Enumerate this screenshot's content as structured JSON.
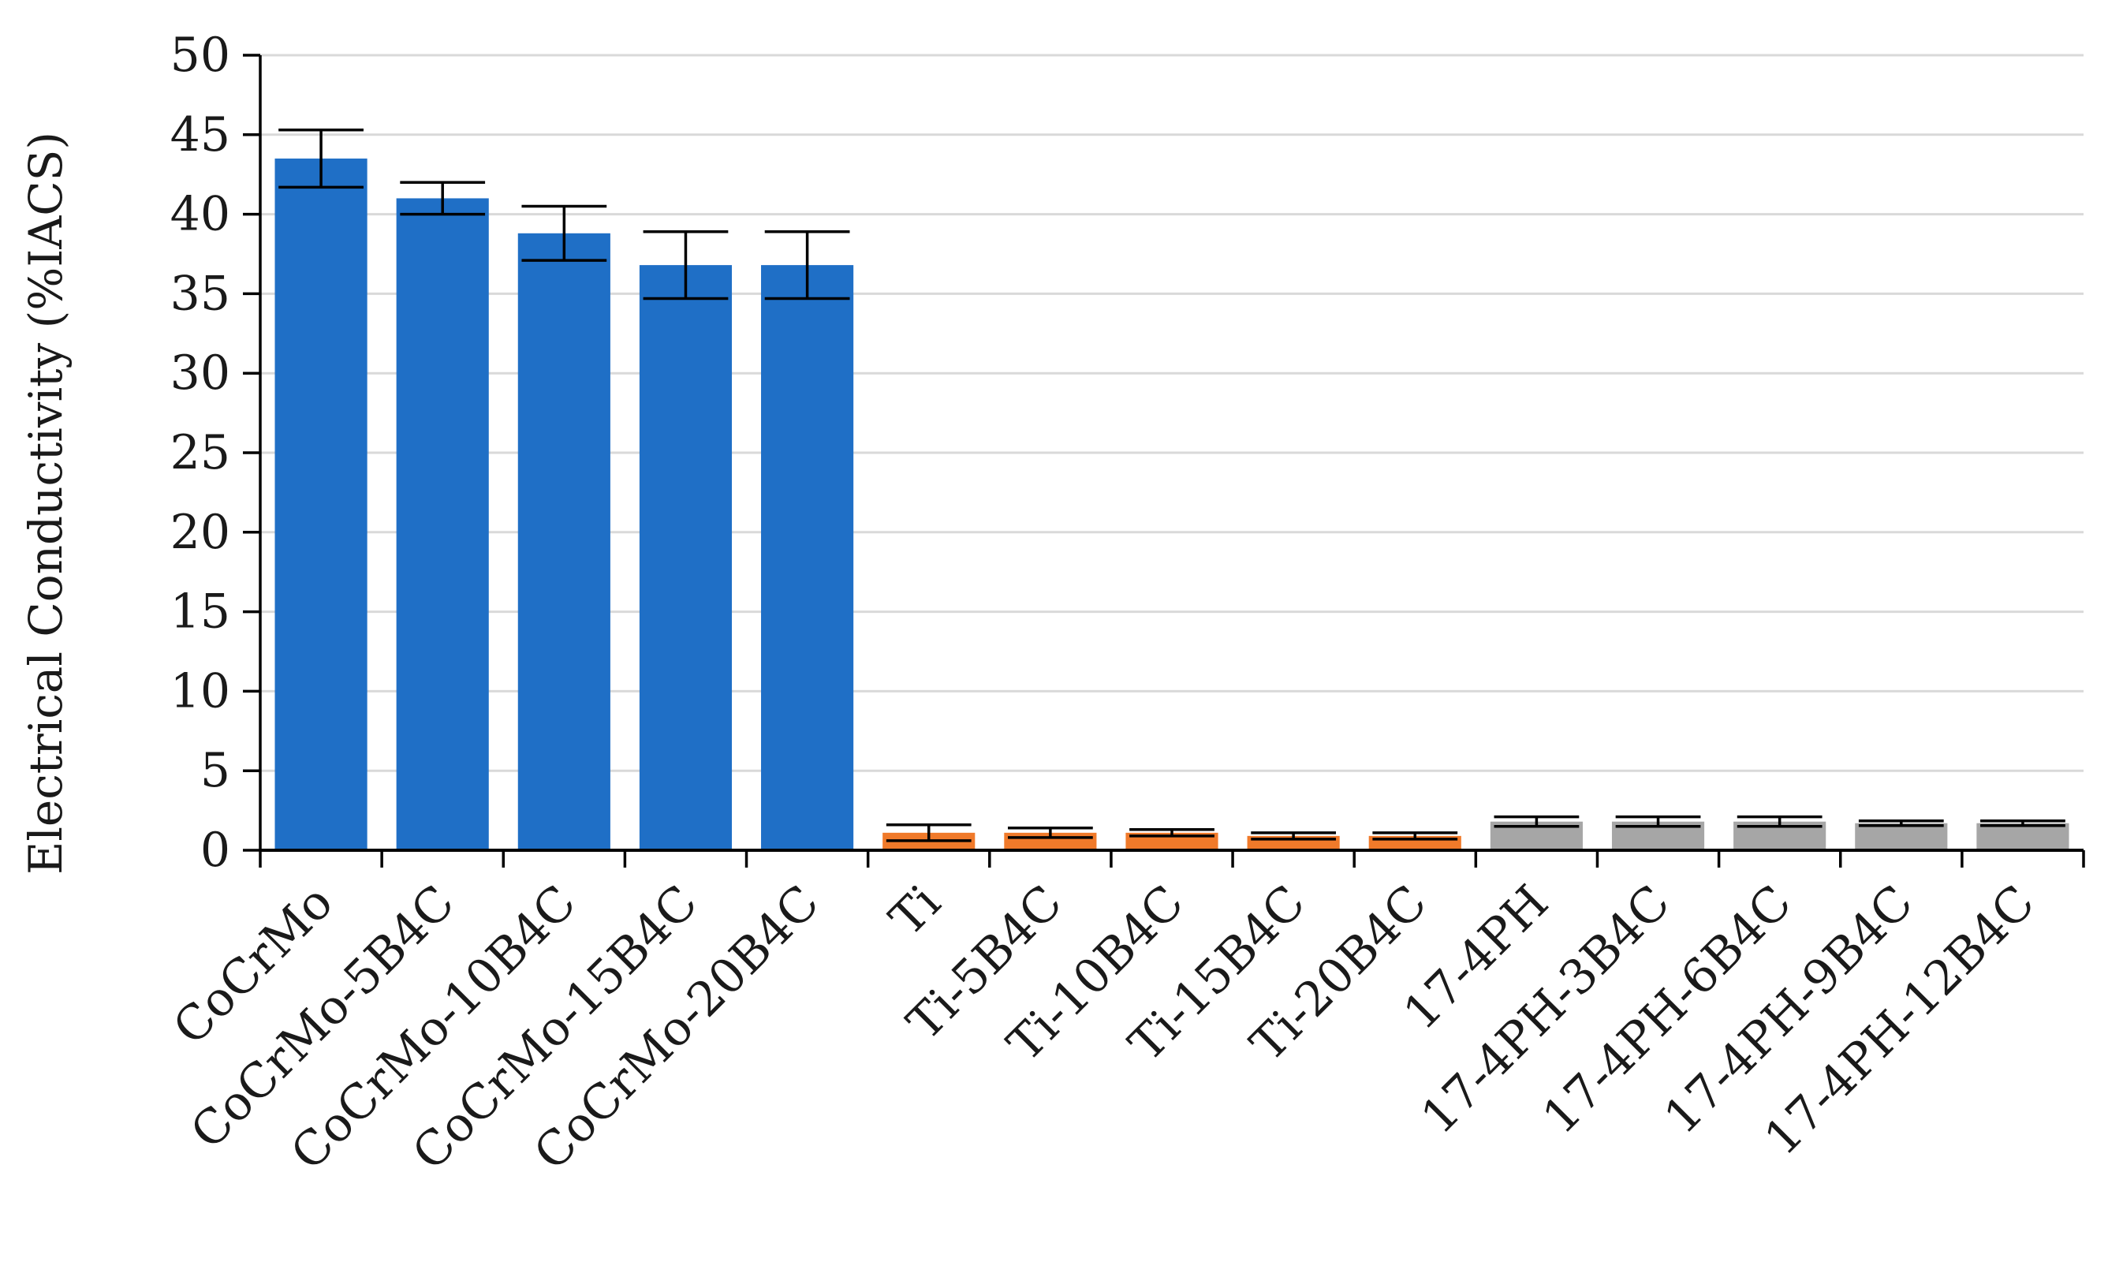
{
  "chart_data": {
    "type": "bar",
    "title": "",
    "xlabel": "",
    "ylabel": "Electrical Conductivity (%IACS)",
    "ylim": [
      0,
      50
    ],
    "yticks": [
      0,
      5,
      10,
      15,
      20,
      25,
      30,
      35,
      40,
      45,
      50
    ],
    "grid": true,
    "legend": "none",
    "categories": [
      "CoCrMo",
      "CoCrMo-5B4C",
      "CoCrMo-10B4C",
      "CoCrMo-15B4C",
      "CoCrMo-20B4C",
      "Ti",
      "Ti-5B4C",
      "Ti-10B4C",
      "Ti-15B4C",
      "Ti-20B4C",
      "17-4PH",
      "17-4PH-3B4C",
      "17-4PH-6B4C",
      "17-4PH-9B4C",
      "17-4PH-12B4C"
    ],
    "values": [
      43.5,
      41.0,
      38.8,
      36.8,
      36.8,
      1.1,
      1.1,
      1.1,
      0.9,
      0.9,
      1.8,
      1.8,
      1.8,
      1.7,
      1.7
    ],
    "errors": [
      1.8,
      1.0,
      1.7,
      2.1,
      2.1,
      0.5,
      0.3,
      0.2,
      0.2,
      0.2,
      0.3,
      0.3,
      0.3,
      0.15,
      0.15
    ],
    "colors": {
      "CoCrMo": "#1f6fc6",
      "Ti": "#f07a2a",
      "17-4PH": "#a6a6a6",
      "grid": "#d9d9d9",
      "axis": "#000000",
      "error_bar": "#000000"
    },
    "bar_groups": [
      0,
      0,
      0,
      0,
      0,
      1,
      1,
      1,
      1,
      1,
      2,
      2,
      2,
      2,
      2
    ],
    "group_color_keys": [
      "CoCrMo",
      "Ti",
      "17-4PH"
    ]
  }
}
